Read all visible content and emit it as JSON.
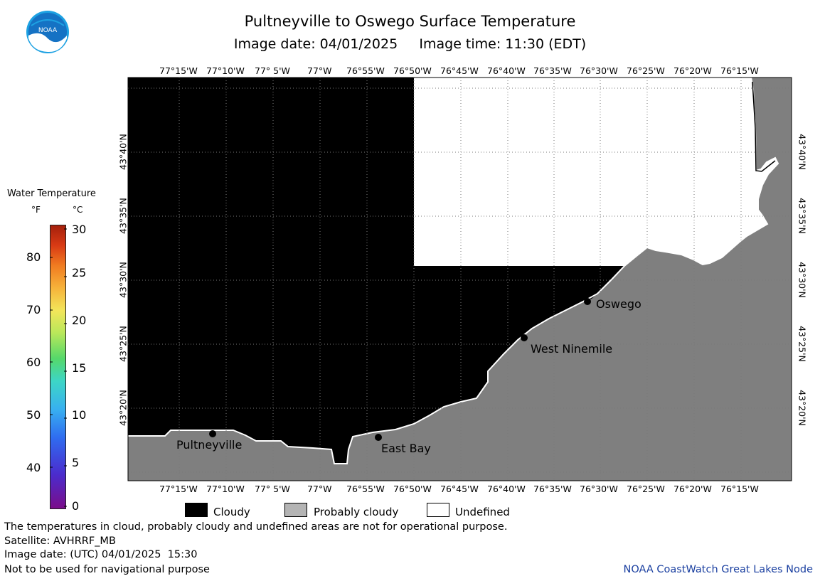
{
  "header": {
    "title": "Pultneyville to Oswego Surface Temperature",
    "subtitle": "Image date: 04/01/2025     Image time: 11:30 (EDT)",
    "logo_text": "NOAA"
  },
  "colorbar": {
    "title": "Water Temperature",
    "unit_f": "°F",
    "unit_c": "°C",
    "fahrenheit_ticks": [
      "80",
      "70",
      "60",
      "50",
      "40"
    ],
    "celsius_ticks": [
      "30",
      "25",
      "20",
      "15",
      "10",
      "5",
      "0"
    ],
    "range_c": [
      0,
      30
    ]
  },
  "map": {
    "longitude_labels": [
      "77°15'W",
      "77°10'W",
      "77° 5'W",
      "77°W",
      "76°55'W",
      "76°50'W",
      "76°45'W",
      "76°40'W",
      "76°35'W",
      "76°30'W",
      "76°25'W",
      "76°20'W",
      "76°15'W"
    ],
    "latitude_labels": [
      "43°40'N",
      "43°35'N",
      "43°30'N",
      "43°25'N",
      "43°20'N"
    ],
    "places": [
      "Pultneyville",
      "East Bay",
      "West Ninemile",
      "Oswego"
    ],
    "colors": {
      "cloudy": "#000000",
      "land": "#7f7f7f",
      "undefined": "#ffffff",
      "grid": "#888888"
    }
  },
  "legend": {
    "cloudy": "Cloudy",
    "probably_cloudy": "Probably cloudy",
    "undefined": "Undefined",
    "swatch_colors": {
      "cloudy": "#000000",
      "probably_cloudy": "#b4b4b4",
      "undefined": "#ffffff"
    }
  },
  "footer": {
    "note": "The temperatures in cloud, probably cloudy and undefined areas are not for operational purpose.",
    "satellite": "Satellite: AVHRRF_MB",
    "image_date_utc": "Image date: (UTC) 04/01/2025  15:30",
    "warning": "Not to be used for navigational purpose",
    "credit": "NOAA CoastWatch Great Lakes Node"
  }
}
